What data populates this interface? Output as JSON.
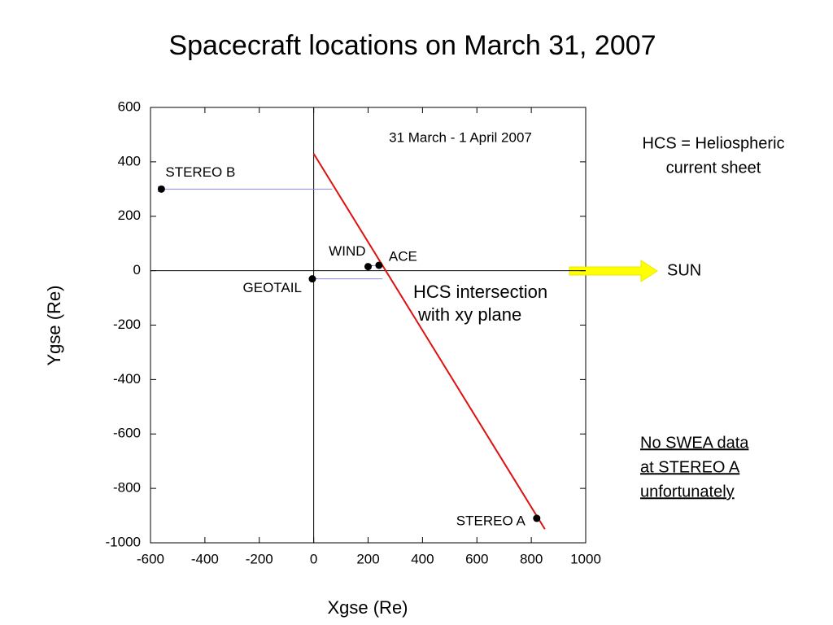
{
  "chart_data": {
    "type": "scatter",
    "title": "Spacecraft locations on March 31, 2007",
    "subtitle": "31 March - 1 April 2007",
    "x_label": "Xgse (Re)",
    "y_label": "Ygse (Re)",
    "labels": [
      "STEREO B",
      "WIND",
      "ACE",
      "GEOTAIL",
      "STEREO A"
    ],
    "x": [
      -560,
      200,
      240,
      -5,
      820
    ],
    "values": [
      300,
      15,
      20,
      -30,
      -910
    ],
    "color": "#000000",
    "xlim": [
      -600,
      1000
    ],
    "ylim": [
      -1000,
      600
    ],
    "xticks": [
      -600,
      -400,
      -200,
      0,
      200,
      400,
      600,
      800,
      1000
    ],
    "yticks": [
      -1000,
      -800,
      -600,
      -400,
      -200,
      0,
      200,
      400,
      600
    ],
    "arrows": [
      {
        "x1": 68,
        "y1": 300,
        "x2": -555,
        "y2": 300
      },
      {
        "x1": 253,
        "y1": -30,
        "x2": 5,
        "y2": -30
      },
      {
        "x1": 240,
        "y1": 20,
        "x2": 212,
        "y2": 18
      }
    ],
    "arrow_color": "#0000cc",
    "hcs_line": {
      "x": [
        0,
        850
      ],
      "y": [
        430,
        -950
      ],
      "color": "#dd1111",
      "label": [
        "HCS intersection",
        "with xy plane"
      ]
    },
    "note_hcs": [
      "HCS = Heliospheric",
      "current sheet"
    ],
    "sun_label": "SUN",
    "note_swea": [
      "No SWEA data",
      "at STEREO A",
      "unfortunately"
    ]
  }
}
